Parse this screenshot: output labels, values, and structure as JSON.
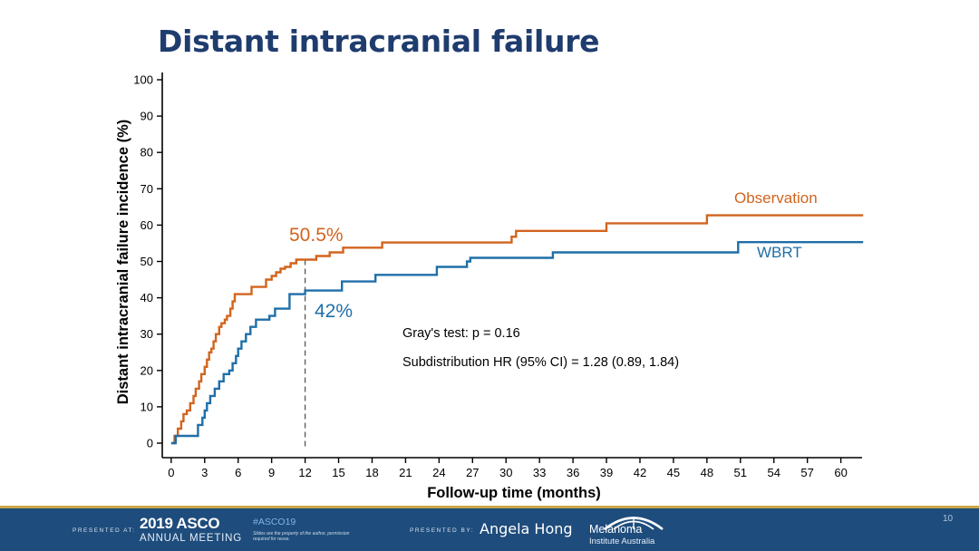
{
  "slide": {
    "title": "Distant intracranial failure",
    "page_number": "10"
  },
  "colors": {
    "observation": "#d2641e",
    "wbrt": "#1f6fa8",
    "title": "#1f3c6e",
    "footer": "#1e4c7c"
  },
  "chart_data": {
    "type": "line",
    "style": "step",
    "title": "Distant intracranial failure",
    "xlabel": "Follow-up time (months)",
    "ylabel": "Distant intracranial failure incidence (%)",
    "xlim": [
      -0.8,
      61.9
    ],
    "ylim": [
      0,
      100
    ],
    "xticks": [
      0,
      3,
      6,
      9,
      12,
      15,
      18,
      21,
      24,
      27,
      30,
      33,
      36,
      39,
      42,
      45,
      48,
      51,
      54,
      57,
      60
    ],
    "yticks": [
      0,
      10,
      20,
      30,
      40,
      50,
      60,
      70,
      80,
      90,
      100
    ],
    "series": [
      {
        "name": "Observation",
        "color": "#d2641e",
        "x": [
          0,
          0.3,
          0.6,
          0.9,
          1.1,
          1.4,
          1.7,
          2.0,
          2.2,
          2.5,
          2.7,
          3.0,
          3.2,
          3.4,
          3.6,
          3.8,
          4.0,
          4.3,
          4.5,
          4.8,
          5.0,
          5.3,
          5.5,
          5.7,
          6.0,
          7.2,
          7.5,
          8.5,
          9.0,
          9.4,
          9.8,
          10.2,
          10.7,
          11.2,
          11.6,
          12.0,
          13.0,
          14.2,
          15.4,
          18.9,
          30.5,
          30.9,
          39.0,
          48.0,
          62.0
        ],
        "y": [
          0,
          2,
          4,
          6,
          8,
          9,
          11,
          13,
          15,
          17,
          19,
          21,
          23,
          25,
          26,
          28,
          30,
          32,
          33,
          34,
          35,
          37,
          39,
          41,
          41,
          43,
          43,
          45,
          46,
          47,
          48,
          48.5,
          49.5,
          50.5,
          50.5,
          50.5,
          51.5,
          52.5,
          53.8,
          55.2,
          56.8,
          58.4,
          60.5,
          62.7,
          62.7
        ]
      },
      {
        "name": "WBRT",
        "color": "#1f6fa8",
        "x": [
          0,
          0.4,
          1.5,
          2.4,
          2.8,
          3.0,
          3.2,
          3.5,
          3.9,
          4.3,
          4.7,
          5.2,
          5.5,
          5.8,
          6.0,
          6.3,
          6.7,
          7.1,
          7.6,
          8.8,
          9.3,
          10.6,
          12.0,
          15.3,
          18.3,
          23.8,
          26.5,
          26.8,
          34.2,
          50.8,
          62.0
        ],
        "y": [
          0,
          2,
          2,
          5,
          7,
          9,
          11,
          13,
          15,
          17,
          19,
          20,
          22,
          24,
          26,
          28,
          30,
          32,
          34,
          35,
          37,
          41,
          42,
          44.5,
          46.3,
          48.5,
          50.0,
          51.0,
          52.5,
          55.3,
          55.3
        ]
      }
    ],
    "annotations": {
      "observation_12m": "50.5%",
      "wbrt_12m": "42%",
      "gray_test": "Gray's test: p = 0.16",
      "hr": "Subdistribution HR (95% CI) = 1.28 (0.89, 1.84)",
      "reference_line_x": 12
    },
    "legend": {
      "observation_label": "Observation",
      "wbrt_label": "WBRT"
    }
  },
  "footer": {
    "presented_at": "PRESENTED AT:",
    "asco_year": "2019 ASCO",
    "asco_sub": "ANNUAL MEETING",
    "hashtag": "#ASCO19",
    "note": "Slides are the property of the author, permission required for reuse.",
    "presented_by": "PRESENTED BY:",
    "presenter": "Angela Hong",
    "org_line1": "Melanoma",
    "org_line2": "Institute Australia"
  }
}
